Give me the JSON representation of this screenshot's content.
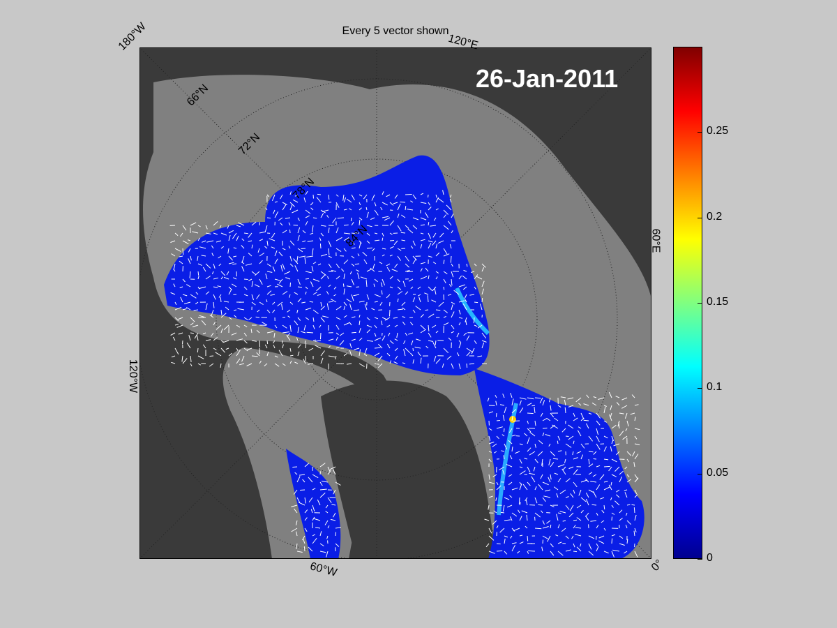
{
  "map": {
    "title": "Every 5 vector shown",
    "date_label": "26-Jan-2011",
    "longitude_labels": [
      "180°W",
      "120°E",
      "60°E",
      "0°",
      "60°W",
      "120°W"
    ],
    "latitude_labels": [
      "66°N",
      "72°N",
      "78°N",
      "84°N"
    ],
    "colors": {
      "land": "#3a3a3a",
      "ocean": "#808080",
      "sea_ice_low": "#0a1ee6",
      "vector": "#ffffff"
    }
  },
  "colorbar": {
    "ticks": [
      "0",
      "0.05",
      "0.1",
      "0.15",
      "0.2",
      "0.25"
    ],
    "range": [
      0,
      0.3
    ],
    "colormap": "jet"
  }
}
